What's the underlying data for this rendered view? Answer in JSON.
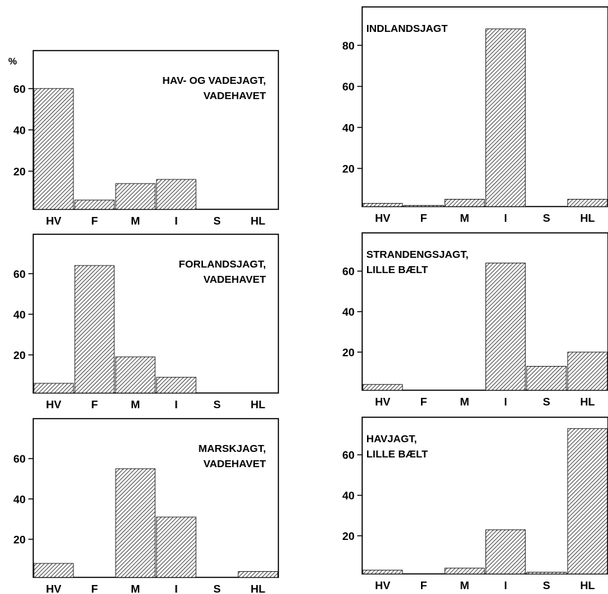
{
  "y_unit_label": "%",
  "category_labels": [
    "HV",
    "F",
    "M",
    "I",
    "S",
    "HL"
  ],
  "hatch_color": "#000000",
  "chart_data": [
    {
      "type": "bar",
      "title_lines": [
        "HAV- OG VADEJAGT,",
        "VADEHAVET"
      ],
      "categories": [
        "HV",
        "F",
        "M",
        "I",
        "S",
        "HL"
      ],
      "values": [
        60,
        6,
        14,
        16,
        0,
        0
      ],
      "yticks": [
        20,
        40,
        60
      ],
      "ylim": [
        0,
        80
      ],
      "grid": false,
      "title_position": "top-right"
    },
    {
      "type": "bar",
      "title_lines": [
        "INDLANDSJAGT"
      ],
      "categories": [
        "HV",
        "F",
        "M",
        "I",
        "S",
        "HL"
      ],
      "values": [
        3,
        2,
        5,
        88,
        0,
        5
      ],
      "yticks": [
        20,
        40,
        60,
        80
      ],
      "ylim": [
        0,
        95
      ],
      "grid": false,
      "title_position": "top-left"
    },
    {
      "type": "bar",
      "title_lines": [
        "FORLANDSJAGT,",
        "VADEHAVET"
      ],
      "categories": [
        "HV",
        "F",
        "M",
        "I",
        "S",
        "HL"
      ],
      "values": [
        6,
        64,
        19,
        9,
        0,
        0
      ],
      "yticks": [
        20,
        40,
        60
      ],
      "ylim": [
        0,
        75
      ],
      "grid": false,
      "title_position": "top-right"
    },
    {
      "type": "bar",
      "title_lines": [
        "STRANDENGSJAGT,",
        "LILLE BÆLT"
      ],
      "categories": [
        "HV",
        "F",
        "M",
        "I",
        "S",
        "HL"
      ],
      "values": [
        4,
        0,
        0,
        64,
        13,
        20
      ],
      "yticks": [
        20,
        40,
        60
      ],
      "ylim": [
        0,
        78
      ],
      "grid": false,
      "title_position": "top-left"
    },
    {
      "type": "bar",
      "title_lines": [
        "MARSKJAGT,",
        "VADEHAVET"
      ],
      "categories": [
        "HV",
        "F",
        "M",
        "I",
        "S",
        "HL"
      ],
      "values": [
        8,
        0,
        55,
        31,
        0,
        4
      ],
      "yticks": [
        20,
        40,
        60
      ],
      "ylim": [
        0,
        78
      ],
      "grid": false,
      "title_position": "top-right"
    },
    {
      "type": "bar",
      "title_lines": [
        "HAVJAGT,",
        "LILLE BÆLT"
      ],
      "categories": [
        "HV",
        "F",
        "M",
        "I",
        "S",
        "HL"
      ],
      "values": [
        3,
        0,
        4,
        23,
        2,
        73
      ],
      "yticks": [
        20,
        40,
        60
      ],
      "ylim": [
        0,
        78
      ],
      "grid": false,
      "title_position": "top-left"
    }
  ]
}
